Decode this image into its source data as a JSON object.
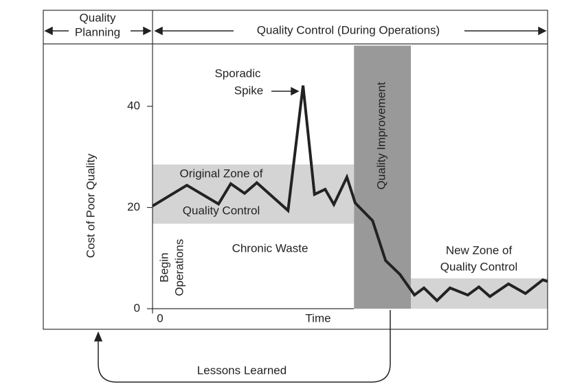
{
  "chart_data": {
    "type": "line",
    "header": {
      "planning": [
        "Quality",
        "Planning"
      ],
      "control": "Quality Control (During Operations)"
    },
    "ylabel": "Cost of Poor Quality",
    "xlabel": "Time",
    "ylim": [
      0,
      52
    ],
    "yticks": [
      0,
      20,
      40
    ],
    "xlim": [
      0,
      100
    ],
    "xticks": [
      0
    ],
    "grid": false,
    "x": [
      0,
      8.7,
      16.7,
      19.8,
      23.3,
      26.4,
      34.3,
      38.1,
      41.0,
      43.7,
      45.9,
      49.2,
      51.3,
      55.7,
      59.0,
      62.6,
      66.3,
      68.7,
      72.0,
      75.3,
      79.8,
      82.6,
      85.4,
      90.1,
      94.4,
      98.8,
      100
    ],
    "values": [
      20.3,
      24.4,
      20.7,
      24.7,
      22.8,
      24.9,
      19.4,
      44.1,
      22.6,
      23.6,
      20.6,
      26.0,
      20.9,
      17.4,
      9.5,
      6.8,
      2.7,
      4.1,
      1.6,
      4.1,
      2.7,
      4.3,
      2.4,
      4.9,
      3.0,
      5.7,
      5.4
    ],
    "color": "#222222",
    "zones": [
      {
        "name": [
          "Original Zone of",
          "Quality Control"
        ],
        "x": [
          0,
          51
        ],
        "y": [
          16.8,
          28.5
        ],
        "color": "#d4d4d4"
      },
      {
        "name": [
          "Quality Improvement"
        ],
        "x": [
          51,
          65.4
        ],
        "y": [
          0,
          52
        ],
        "color": "#999999"
      },
      {
        "name": [
          "New Zone of",
          "Quality Control"
        ],
        "x": [
          65.4,
          100
        ],
        "y": [
          0,
          6
        ],
        "color": "#d4d4d4"
      }
    ],
    "annotations": {
      "spike": [
        "Sporadic",
        "Spike"
      ],
      "chronic": "Chronic Waste",
      "begin": [
        "Begin",
        "Operations"
      ],
      "lessons": "Lessons Learned"
    }
  }
}
